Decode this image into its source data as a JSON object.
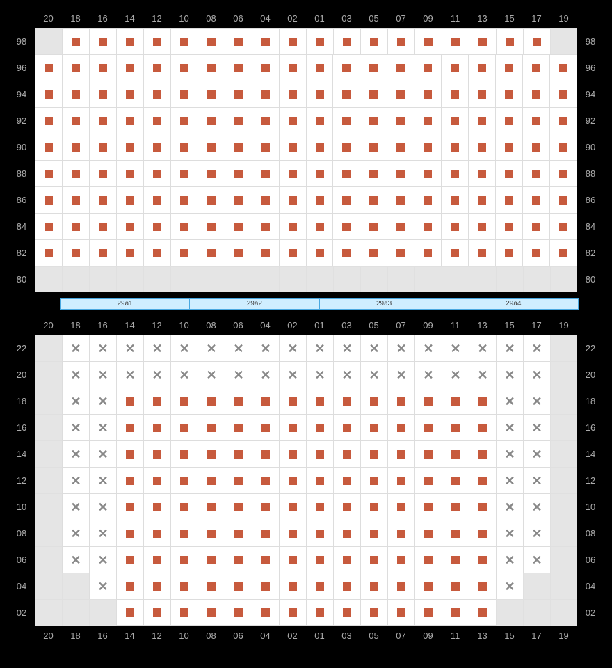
{
  "columns": [
    "20",
    "18",
    "16",
    "14",
    "12",
    "10",
    "08",
    "06",
    "04",
    "02",
    "01",
    "03",
    "05",
    "07",
    "09",
    "11",
    "13",
    "15",
    "17",
    "19"
  ],
  "zones": [
    "29a1",
    "29a2",
    "29a3",
    "29a4"
  ],
  "seat_color": "#c75a3d",
  "x_color": "#888888",
  "empty_bg": "#e5e5e5",
  "seat_bg": "#ffffff",
  "cell_size": 38,
  "upper": {
    "row_labels": [
      "98",
      "96",
      "94",
      "92",
      "90",
      "88",
      "86",
      "84",
      "82",
      "80"
    ],
    "rows": [
      [
        "e",
        "a",
        "a",
        "a",
        "a",
        "a",
        "a",
        "a",
        "a",
        "a",
        "a",
        "a",
        "a",
        "a",
        "a",
        "a",
        "a",
        "a",
        "a",
        "e"
      ],
      [
        "a",
        "a",
        "a",
        "a",
        "a",
        "a",
        "a",
        "a",
        "a",
        "a",
        "a",
        "a",
        "a",
        "a",
        "a",
        "a",
        "a",
        "a",
        "a",
        "a"
      ],
      [
        "a",
        "a",
        "a",
        "a",
        "a",
        "a",
        "a",
        "a",
        "a",
        "a",
        "a",
        "a",
        "a",
        "a",
        "a",
        "a",
        "a",
        "a",
        "a",
        "a"
      ],
      [
        "a",
        "a",
        "a",
        "a",
        "a",
        "a",
        "a",
        "a",
        "a",
        "a",
        "a",
        "a",
        "a",
        "a",
        "a",
        "a",
        "a",
        "a",
        "a",
        "a"
      ],
      [
        "a",
        "a",
        "a",
        "a",
        "a",
        "a",
        "a",
        "a",
        "a",
        "a",
        "a",
        "a",
        "a",
        "a",
        "a",
        "a",
        "a",
        "a",
        "a",
        "a"
      ],
      [
        "a",
        "a",
        "a",
        "a",
        "a",
        "a",
        "a",
        "a",
        "a",
        "a",
        "a",
        "a",
        "a",
        "a",
        "a",
        "a",
        "a",
        "a",
        "a",
        "a"
      ],
      [
        "a",
        "a",
        "a",
        "a",
        "a",
        "a",
        "a",
        "a",
        "a",
        "a",
        "a",
        "a",
        "a",
        "a",
        "a",
        "a",
        "a",
        "a",
        "a",
        "a"
      ],
      [
        "a",
        "a",
        "a",
        "a",
        "a",
        "a",
        "a",
        "a",
        "a",
        "a",
        "a",
        "a",
        "a",
        "a",
        "a",
        "a",
        "a",
        "a",
        "a",
        "a"
      ],
      [
        "a",
        "a",
        "a",
        "a",
        "a",
        "a",
        "a",
        "a",
        "a",
        "a",
        "a",
        "a",
        "a",
        "a",
        "a",
        "a",
        "a",
        "a",
        "a",
        "a"
      ],
      [
        "e",
        "e",
        "e",
        "e",
        "e",
        "e",
        "e",
        "e",
        "e",
        "e",
        "e",
        "e",
        "e",
        "e",
        "e",
        "e",
        "e",
        "e",
        "e",
        "e"
      ]
    ]
  },
  "lower": {
    "row_labels": [
      "22",
      "20",
      "18",
      "16",
      "14",
      "12",
      "10",
      "08",
      "06",
      "04",
      "02"
    ],
    "rows": [
      [
        "e",
        "x",
        "x",
        "x",
        "x",
        "x",
        "x",
        "x",
        "x",
        "x",
        "x",
        "x",
        "x",
        "x",
        "x",
        "x",
        "x",
        "x",
        "x",
        "e"
      ],
      [
        "e",
        "x",
        "x",
        "x",
        "x",
        "x",
        "x",
        "x",
        "x",
        "x",
        "x",
        "x",
        "x",
        "x",
        "x",
        "x",
        "x",
        "x",
        "x",
        "e"
      ],
      [
        "e",
        "x",
        "x",
        "a",
        "a",
        "a",
        "a",
        "a",
        "a",
        "a",
        "a",
        "a",
        "a",
        "a",
        "a",
        "a",
        "a",
        "x",
        "x",
        "e"
      ],
      [
        "e",
        "x",
        "x",
        "a",
        "a",
        "a",
        "a",
        "a",
        "a",
        "a",
        "a",
        "a",
        "a",
        "a",
        "a",
        "a",
        "a",
        "x",
        "x",
        "e"
      ],
      [
        "e",
        "x",
        "x",
        "a",
        "a",
        "a",
        "a",
        "a",
        "a",
        "a",
        "a",
        "a",
        "a",
        "a",
        "a",
        "a",
        "a",
        "x",
        "x",
        "e"
      ],
      [
        "e",
        "x",
        "x",
        "a",
        "a",
        "a",
        "a",
        "a",
        "a",
        "a",
        "a",
        "a",
        "a",
        "a",
        "a",
        "a",
        "a",
        "x",
        "x",
        "e"
      ],
      [
        "e",
        "x",
        "x",
        "a",
        "a",
        "a",
        "a",
        "a",
        "a",
        "a",
        "a",
        "a",
        "a",
        "a",
        "a",
        "a",
        "a",
        "x",
        "x",
        "e"
      ],
      [
        "e",
        "x",
        "x",
        "a",
        "a",
        "a",
        "a",
        "a",
        "a",
        "a",
        "a",
        "a",
        "a",
        "a",
        "a",
        "a",
        "a",
        "x",
        "x",
        "e"
      ],
      [
        "e",
        "x",
        "x",
        "a",
        "a",
        "a",
        "a",
        "a",
        "a",
        "a",
        "a",
        "a",
        "a",
        "a",
        "a",
        "a",
        "a",
        "x",
        "x",
        "e"
      ],
      [
        "e",
        "e",
        "x",
        "a",
        "a",
        "a",
        "a",
        "a",
        "a",
        "a",
        "a",
        "a",
        "a",
        "a",
        "a",
        "a",
        "a",
        "x",
        "e",
        "e"
      ],
      [
        "e",
        "e",
        "e",
        "a",
        "a",
        "a",
        "a",
        "a",
        "a",
        "a",
        "a",
        "a",
        "a",
        "a",
        "a",
        "a",
        "a",
        "e",
        "e",
        "e"
      ]
    ]
  }
}
